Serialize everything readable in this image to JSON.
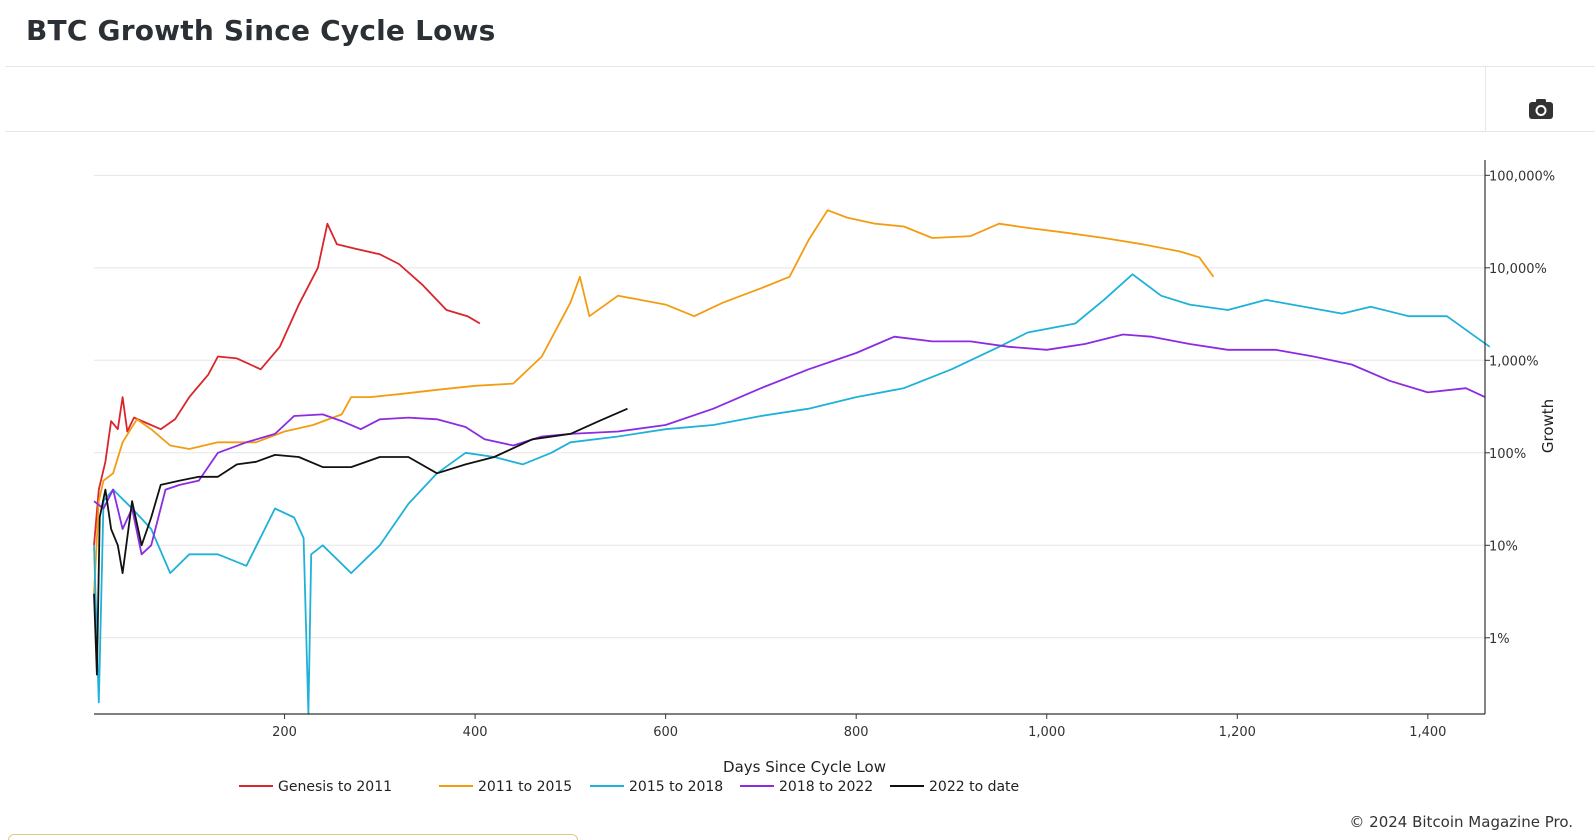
{
  "page": {
    "title": "BTC Growth Since Cycle Lows",
    "copyright": "© 2024 Bitcoin Magazine Pro."
  },
  "toolbar": {
    "camera_icon": "camera-icon"
  },
  "chart_data": {
    "type": "line",
    "title": "BTC Growth Since Cycle Lows",
    "xlabel": "Days Since Cycle Low",
    "ylabel": "Growth",
    "xlim": [
      0,
      1460
    ],
    "x_ticks": [
      200,
      400,
      600,
      800,
      1000,
      1200,
      1400
    ],
    "x_tick_labels": [
      "200",
      "400",
      "600",
      "800",
      "1,000",
      "1,200",
      "1,400"
    ],
    "y_scale": "log",
    "ylim_percent": [
      0.15,
      120000
    ],
    "y_ticks": [
      1,
      10,
      100,
      1000,
      10000,
      100000
    ],
    "y_tick_labels": [
      "1%",
      "10%",
      "100%",
      "1,000%",
      "10,000%",
      "100,000%"
    ],
    "y_axis_side": "right",
    "grid": true,
    "legend_position": "bottom",
    "series": [
      {
        "name": "Genesis to 2011",
        "color": "#d9262b",
        "points": [
          [
            0,
            10
          ],
          [
            5,
            40
          ],
          [
            12,
            80
          ],
          [
            18,
            220
          ],
          [
            25,
            180
          ],
          [
            30,
            400
          ],
          [
            35,
            170
          ],
          [
            42,
            240
          ],
          [
            55,
            210
          ],
          [
            70,
            180
          ],
          [
            85,
            230
          ],
          [
            100,
            400
          ],
          [
            120,
            700
          ],
          [
            130,
            1100
          ],
          [
            150,
            1050
          ],
          [
            175,
            800
          ],
          [
            195,
            1400
          ],
          [
            215,
            4000
          ],
          [
            235,
            10000
          ],
          [
            245,
            30000
          ],
          [
            255,
            18000
          ],
          [
            275,
            16000
          ],
          [
            300,
            14000
          ],
          [
            320,
            11000
          ],
          [
            345,
            6500
          ],
          [
            370,
            3500
          ],
          [
            392,
            3000
          ],
          [
            405,
            2500
          ]
        ]
      },
      {
        "name": "2011 to 2015",
        "color": "#f39c12",
        "points": [
          [
            0,
            3
          ],
          [
            5,
            30
          ],
          [
            10,
            50
          ],
          [
            20,
            60
          ],
          [
            30,
            130
          ],
          [
            45,
            230
          ],
          [
            60,
            180
          ],
          [
            80,
            120
          ],
          [
            100,
            110
          ],
          [
            130,
            130
          ],
          [
            170,
            130
          ],
          [
            200,
            170
          ],
          [
            230,
            200
          ],
          [
            260,
            260
          ],
          [
            270,
            400
          ],
          [
            290,
            400
          ],
          [
            320,
            430
          ],
          [
            360,
            480
          ],
          [
            400,
            530
          ],
          [
            440,
            560
          ],
          [
            470,
            1100
          ],
          [
            500,
            4200
          ],
          [
            510,
            8000
          ],
          [
            520,
            3000
          ],
          [
            550,
            5000
          ],
          [
            600,
            4000
          ],
          [
            630,
            3000
          ],
          [
            660,
            4200
          ],
          [
            700,
            6000
          ],
          [
            730,
            8000
          ],
          [
            750,
            20000
          ],
          [
            770,
            42000
          ],
          [
            790,
            35000
          ],
          [
            820,
            30000
          ],
          [
            850,
            28000
          ],
          [
            880,
            21000
          ],
          [
            920,
            22000
          ],
          [
            950,
            30000
          ],
          [
            980,
            27000
          ],
          [
            1020,
            24000
          ],
          [
            1060,
            21000
          ],
          [
            1100,
            18000
          ],
          [
            1140,
            15000
          ],
          [
            1160,
            13000
          ],
          [
            1175,
            8000
          ]
        ]
      },
      {
        "name": "2015 to 2018",
        "color": "#1fb1d9",
        "points": [
          [
            0,
            10
          ],
          [
            5,
            0.2
          ],
          [
            10,
            30
          ],
          [
            20,
            40
          ],
          [
            40,
            25
          ],
          [
            60,
            15
          ],
          [
            80,
            5
          ],
          [
            100,
            8
          ],
          [
            130,
            8
          ],
          [
            160,
            6
          ],
          [
            190,
            25
          ],
          [
            210,
            20
          ],
          [
            220,
            12
          ],
          [
            225,
            0.15
          ],
          [
            228,
            8
          ],
          [
            240,
            10
          ],
          [
            270,
            5
          ],
          [
            300,
            10
          ],
          [
            330,
            28
          ],
          [
            360,
            60
          ],
          [
            390,
            100
          ],
          [
            420,
            90
          ],
          [
            450,
            75
          ],
          [
            480,
            100
          ],
          [
            500,
            130
          ],
          [
            550,
            150
          ],
          [
            600,
            180
          ],
          [
            650,
            200
          ],
          [
            700,
            250
          ],
          [
            750,
            300
          ],
          [
            800,
            400
          ],
          [
            850,
            500
          ],
          [
            900,
            800
          ],
          [
            950,
            1400
          ],
          [
            980,
            2000
          ],
          [
            1030,
            2500
          ],
          [
            1060,
            4500
          ],
          [
            1090,
            8500
          ],
          [
            1120,
            5000
          ],
          [
            1150,
            4000
          ],
          [
            1190,
            3500
          ],
          [
            1230,
            4500
          ],
          [
            1270,
            3800
          ],
          [
            1310,
            3200
          ],
          [
            1340,
            3800
          ],
          [
            1380,
            3000
          ],
          [
            1420,
            3000
          ],
          [
            1450,
            1800
          ],
          [
            1465,
            1400
          ]
        ]
      },
      {
        "name": "2018 to 2022",
        "color": "#8b2be2",
        "points": [
          [
            0,
            30
          ],
          [
            10,
            25
          ],
          [
            20,
            40
          ],
          [
            30,
            15
          ],
          [
            40,
            25
          ],
          [
            50,
            8
          ],
          [
            60,
            10
          ],
          [
            75,
            40
          ],
          [
            90,
            45
          ],
          [
            110,
            50
          ],
          [
            130,
            100
          ],
          [
            160,
            130
          ],
          [
            190,
            160
          ],
          [
            210,
            250
          ],
          [
            240,
            260
          ],
          [
            260,
            220
          ],
          [
            280,
            180
          ],
          [
            300,
            230
          ],
          [
            330,
            240
          ],
          [
            360,
            230
          ],
          [
            390,
            190
          ],
          [
            410,
            140
          ],
          [
            440,
            120
          ],
          [
            470,
            150
          ],
          [
            500,
            160
          ],
          [
            550,
            170
          ],
          [
            600,
            200
          ],
          [
            650,
            300
          ],
          [
            700,
            500
          ],
          [
            750,
            800
          ],
          [
            800,
            1200
          ],
          [
            840,
            1800
          ],
          [
            880,
            1600
          ],
          [
            920,
            1600
          ],
          [
            960,
            1400
          ],
          [
            1000,
            1300
          ],
          [
            1040,
            1500
          ],
          [
            1080,
            1900
          ],
          [
            1110,
            1800
          ],
          [
            1150,
            1500
          ],
          [
            1190,
            1300
          ],
          [
            1240,
            1300
          ],
          [
            1280,
            1100
          ],
          [
            1320,
            900
          ],
          [
            1360,
            600
          ],
          [
            1400,
            450
          ],
          [
            1440,
            500
          ],
          [
            1460,
            400
          ]
        ]
      },
      {
        "name": "2022 to date",
        "color": "#111111",
        "points": [
          [
            0,
            3
          ],
          [
            3,
            0.4
          ],
          [
            6,
            20
          ],
          [
            12,
            40
          ],
          [
            18,
            15
          ],
          [
            25,
            10
          ],
          [
            30,
            5
          ],
          [
            40,
            30
          ],
          [
            50,
            10
          ],
          [
            60,
            20
          ],
          [
            70,
            45
          ],
          [
            90,
            50
          ],
          [
            110,
            55
          ],
          [
            130,
            55
          ],
          [
            150,
            75
          ],
          [
            170,
            80
          ],
          [
            190,
            95
          ],
          [
            215,
            90
          ],
          [
            240,
            70
          ],
          [
            270,
            70
          ],
          [
            300,
            90
          ],
          [
            330,
            90
          ],
          [
            360,
            60
          ],
          [
            390,
            75
          ],
          [
            420,
            90
          ],
          [
            460,
            140
          ],
          [
            500,
            160
          ],
          [
            530,
            220
          ],
          [
            560,
            300
          ]
        ]
      }
    ]
  }
}
